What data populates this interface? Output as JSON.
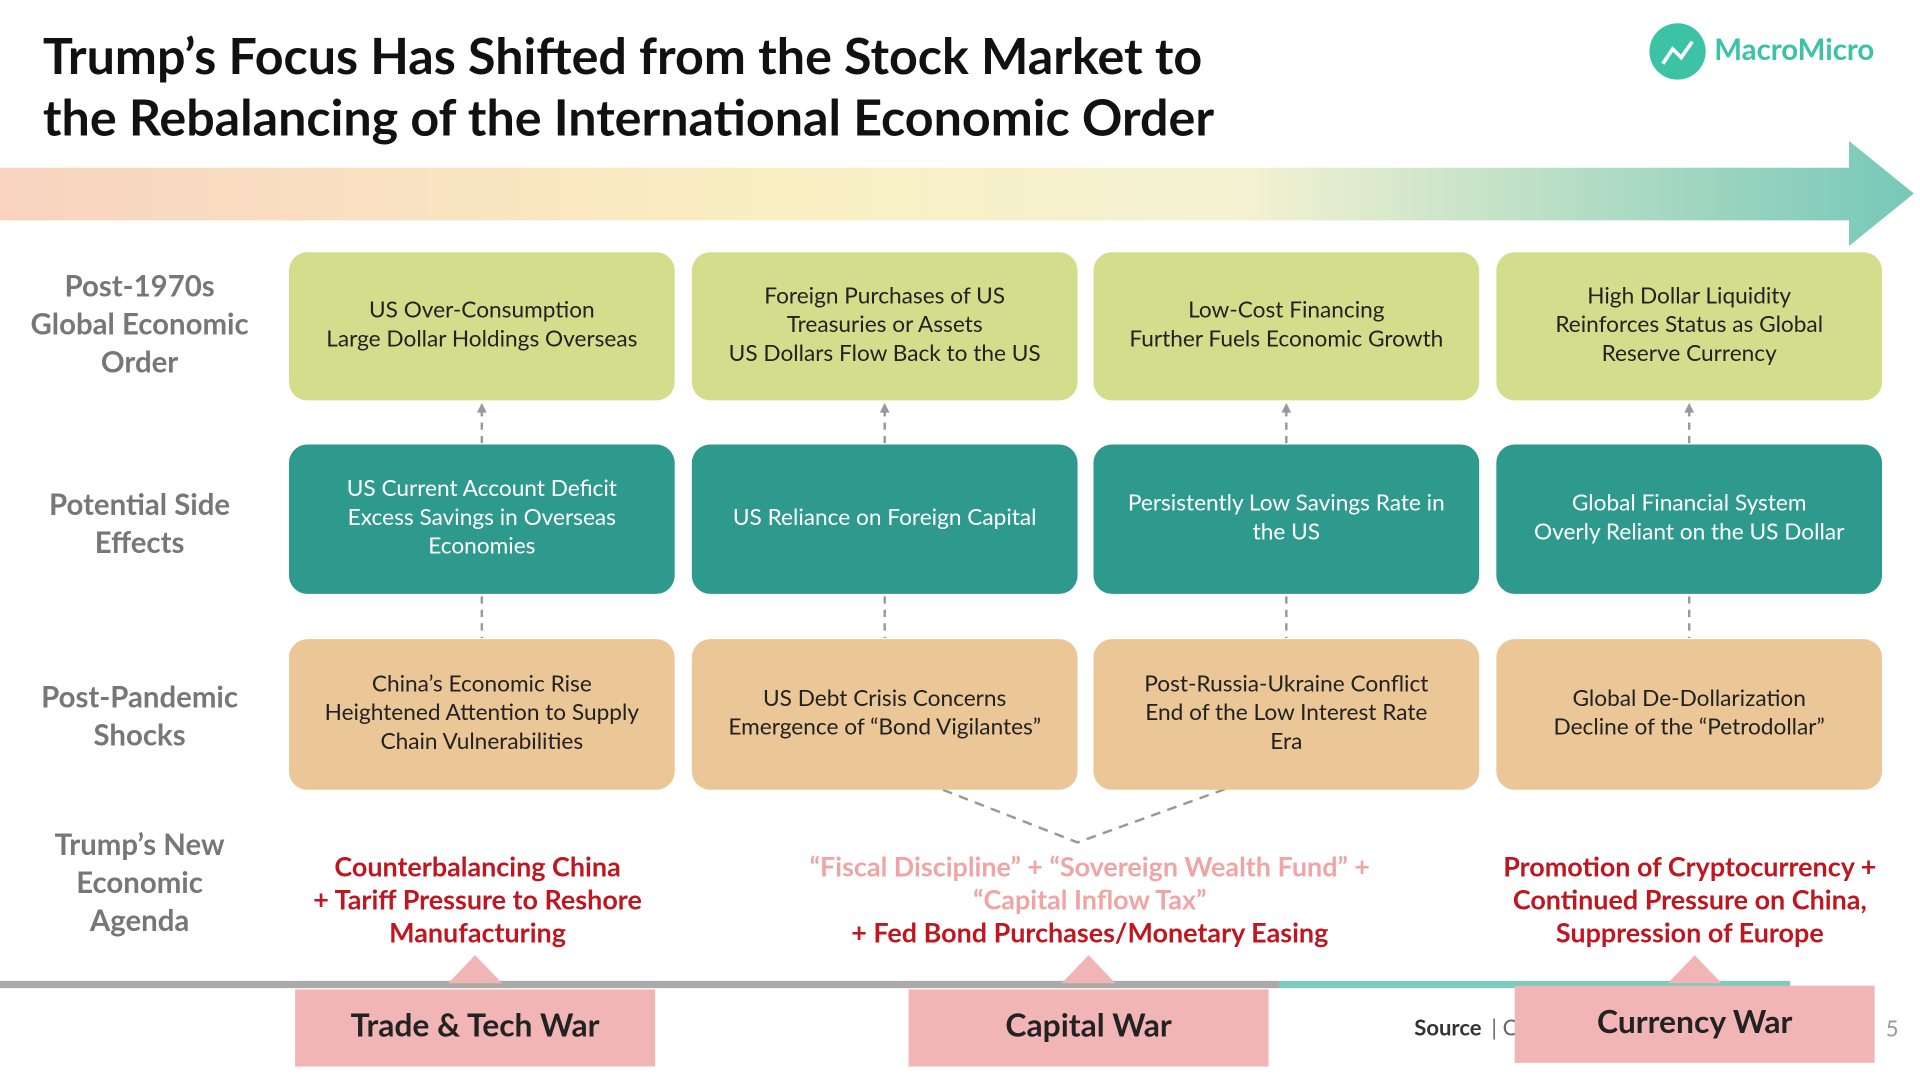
{
  "header": {
    "title": [
      "Trump’s Focus Has Shifted from the Stock Market to",
      "the Rebalancing of the International Economic Order"
    ],
    "logo": "MacroMicro"
  },
  "rows": [
    [
      "Post-1970s",
      "Global Economic",
      "Order"
    ],
    [
      "Potential Side",
      "Effects"
    ],
    [
      "Post-Pandemic",
      "Shocks"
    ],
    [
      "Trump’s New",
      "Economic",
      "Agenda"
    ]
  ],
  "columns": [
    {
      "order": [
        "US Over-Consumption",
        "Large Dollar Holdings Overseas"
      ],
      "effect": [
        "US Current Account Deficit",
        "Excess Savings in Overseas",
        "Economies"
      ],
      "shock": [
        "China’s Economic Rise",
        "Heightened Attention to Supply",
        "Chain Vulnerabilities"
      ]
    },
    {
      "order": [
        "Foreign Purchases of US",
        "Treasuries or Assets",
        "US Dollars Flow Back to the US"
      ],
      "effect": [
        "US Reliance on Foreign Capital"
      ],
      "shock": [
        "US Debt Crisis Concerns",
        "Emergence of “Bond Vigilantes”"
      ]
    },
    {
      "order": [
        "Low-Cost Financing",
        "Further Fuels Economic Growth"
      ],
      "effect": [
        "Persistently Low Savings Rate in",
        "the US"
      ],
      "shock": [
        "Post-Russia-Ukraine Conflict",
        "End of the Low Interest Rate",
        "Era"
      ]
    },
    {
      "order": [
        "High Dollar Liquidity",
        "Reinforces Status as Global",
        "Reserve Currency"
      ],
      "effect": [
        "Global Financial System",
        "Overly Reliant on the US Dollar"
      ],
      "shock": [
        "Global De-Dollarization",
        "Decline of the “Petrodollar”"
      ]
    }
  ],
  "agenda": [
    [
      "Counterbalancing China",
      "+ Tariff Pressure to Reshore",
      "Manufacturing"
    ],
    [
      "“Fiscal Discipline” + “Sovereign Wealth Fund” +",
      "“Capital Inflow Tax”",
      "+ Fed Bond Purchases/Monetary Easing"
    ],
    [
      "Promotion of Cryptocurrency +",
      "Continued Pressure on China,",
      "Suppression of Europe"
    ]
  ],
  "tabs": [
    "Trade & Tech War",
    "Capital War",
    "Currency War"
  ],
  "footer": {
    "source_label": "Source",
    "source_text": "| Compile",
    "page": "5"
  }
}
